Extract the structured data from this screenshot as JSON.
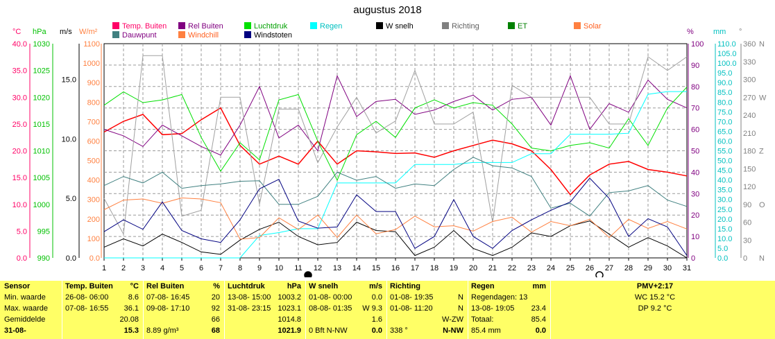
{
  "title": "augustus 2018",
  "legend": [
    {
      "label": "Temp. Buiten",
      "color": "#ff0066"
    },
    {
      "label": "Rel Buiten",
      "color": "#800080"
    },
    {
      "label": "Luchtdruk",
      "color": "#00e000"
    },
    {
      "label": "Regen",
      "color": "#00ffff"
    },
    {
      "label": "W snelh",
      "color": "#000000"
    },
    {
      "label": "Richting",
      "color": "#808080"
    },
    {
      "label": "ET",
      "color": "#008000"
    },
    {
      "label": "Solar",
      "color": "#ff8040"
    },
    {
      "label": "Dauwpunt",
      "color": "#408080"
    },
    {
      "label": "Windchill",
      "color": "#ff8040"
    },
    {
      "label": "Windstoten",
      "color": "#000080"
    }
  ],
  "units": {
    "temp": "°C",
    "press": "hPa",
    "wind": "m/s",
    "solar": "W/m²",
    "pct": "%",
    "rain": "mm",
    "dir": "°"
  },
  "chart_data": {
    "type": "line",
    "title": "augustus 2018",
    "x": [
      1,
      2,
      3,
      4,
      5,
      6,
      7,
      8,
      9,
      10,
      11,
      12,
      13,
      14,
      15,
      16,
      17,
      18,
      19,
      20,
      21,
      22,
      23,
      24,
      25,
      26,
      27,
      28,
      29,
      30,
      31
    ],
    "axes": {
      "temp": {
        "min": 0,
        "max": 40,
        "ticks": [
          "0.0",
          "5.0",
          "10.0",
          "15.0",
          "20.0",
          "25.0",
          "30.0",
          "35.0",
          "40.0"
        ]
      },
      "press": {
        "min": 990,
        "max": 1030,
        "ticks": [
          "990",
          "995",
          "1000",
          "1005",
          "1010",
          "1015",
          "1020",
          "1025",
          "1030"
        ]
      },
      "wind": {
        "min": 0,
        "max": 18,
        "ticks": [
          "0.0",
          "5.0",
          "10.0",
          "15.0"
        ]
      },
      "solar": {
        "min": 0,
        "max": 1100,
        "ticks": [
          "0.0",
          "100",
          "200",
          "300",
          "400",
          "500",
          "600",
          "700",
          "800",
          "900",
          "1000",
          "1100"
        ]
      },
      "pct": {
        "min": 0,
        "max": 100,
        "ticks": [
          "0",
          "10",
          "20",
          "30",
          "40",
          "50",
          "60",
          "70",
          "80",
          "90",
          "100"
        ]
      },
      "rain": {
        "min": 0,
        "max": 110,
        "ticks": [
          "0.0",
          "5.0",
          "10.0",
          "15.0",
          "20.0",
          "25.0",
          "30.0",
          "35.0",
          "40.0",
          "45.0",
          "50.0",
          "55.0",
          "60.0",
          "65.0",
          "70.0",
          "75.0",
          "80.0",
          "85.0",
          "90.0",
          "95.0",
          "100.0",
          "105.0",
          "110.0"
        ]
      },
      "dir": {
        "min": 0,
        "max": 360,
        "ticks": [
          "0",
          "30",
          "60",
          "90",
          "120",
          "150",
          "180",
          "210",
          "240",
          "270",
          "300",
          "330",
          "360"
        ]
      },
      "dir_labels": [
        "N",
        "",
        "",
        "O",
        "",
        "",
        "Z",
        "",
        "",
        "W",
        "",
        "",
        "N"
      ]
    },
    "series": [
      {
        "name": "Temp. Buiten",
        "axis": "temp",
        "color": "#ff0000",
        "width": 1.5,
        "values": [
          23.5,
          25.5,
          26.8,
          23.0,
          23.2,
          25.8,
          28.0,
          21.0,
          17.5,
          19.0,
          17.5,
          21.8,
          17.5,
          20.0,
          19.8,
          19.5,
          19.6,
          18.8,
          20.0,
          21.0,
          22.0,
          21.3,
          20.0,
          16.5,
          11.8,
          15.5,
          17.5,
          18.0,
          16.5,
          16.0,
          15.3
        ]
      },
      {
        "name": "Rel Buiten",
        "axis": "pct",
        "color": "#800080",
        "values": [
          60,
          57,
          52,
          62,
          57,
          52,
          48,
          62,
          80,
          56,
          62,
          50,
          85,
          66,
          73,
          74,
          67,
          69,
          73,
          76,
          69,
          74,
          75,
          62,
          85,
          60,
          72,
          68,
          83,
          74,
          70
        ]
      },
      {
        "name": "Luchtdruk",
        "axis": "press",
        "color": "#00e000",
        "values": [
          1018.5,
          1021.0,
          1019.0,
          1019.5,
          1020.5,
          1012.5,
          1006.2,
          1011.5,
          1008.3,
          1019.5,
          1020.5,
          1011.8,
          1004.5,
          1013.0,
          1015.5,
          1012.5,
          1018.0,
          1019.5,
          1018.0,
          1019.0,
          1018.5,
          1015.0,
          1010.5,
          1010.0,
          1011.0,
          1011.5,
          1010.5,
          1016.0,
          1011.0,
          1018.0,
          1021.9
        ]
      },
      {
        "name": "Regen",
        "axis": "rain",
        "color": "#00ffff",
        "values": [
          0,
          0,
          0,
          0,
          0,
          0,
          0,
          0,
          11.5,
          13.0,
          15.0,
          15.0,
          38.5,
          38.5,
          38.5,
          38.5,
          48.0,
          48.0,
          48.0,
          49.0,
          49.0,
          49.0,
          53.5,
          53.5,
          63.5,
          63.5,
          63.5,
          64.0,
          84.0,
          85.4,
          85.4
        ]
      },
      {
        "name": "W snelh",
        "axis": "wind",
        "color": "#000000",
        "values": [
          0.9,
          1.6,
          1.0,
          2.0,
          1.3,
          0.5,
          0.3,
          1.5,
          2.4,
          3.0,
          1.8,
          1.1,
          1.3,
          3.0,
          2.3,
          2.2,
          0.2,
          0.9,
          2.3,
          0.8,
          0.2,
          0.9,
          2.1,
          1.8,
          2.7,
          3.1,
          2.0,
          0.9,
          1.7,
          1.0,
          0.0
        ]
      },
      {
        "name": "Richting",
        "axis": "dir",
        "color": "#a0a0a0",
        "values": [
          100,
          40,
          340,
          340,
          70,
          80,
          270,
          270,
          90,
          250,
          250,
          160,
          220,
          270,
          210,
          230,
          315,
          225,
          225,
          245,
          60,
          290,
          270,
          270,
          270,
          270,
          225,
          225,
          338,
          315,
          338
        ]
      },
      {
        "name": "Dauwpunt",
        "axis": "temp",
        "color": "#408080",
        "values": [
          13.5,
          15.2,
          14.0,
          16.0,
          13.0,
          13.5,
          13.8,
          14.3,
          14.4,
          10.0,
          10.0,
          11.5,
          16.0,
          14.5,
          15.2,
          13.0,
          13.8,
          13.5,
          16.5,
          18.8,
          17.2,
          16.8,
          15.2,
          9.3,
          10.2,
          7.8,
          12.2,
          12.5,
          13.5,
          10.8,
          9.6
        ]
      },
      {
        "name": "Windchill",
        "axis": "temp",
        "color": "#ff8040",
        "values": [
          9.0,
          10.8,
          11.0,
          10.2,
          11.2,
          11.0,
          10.3,
          3.5,
          3.8,
          7.5,
          5.3,
          8.0,
          3.8,
          8.0,
          4.5,
          5.3,
          7.8,
          5.8,
          6.0,
          5.0,
          6.8,
          7.6,
          4.8,
          6.8,
          6.0,
          7.2,
          3.8,
          7.2,
          5.5,
          6.8,
          5.4
        ]
      },
      {
        "name": "Windstoten",
        "axis": "wind",
        "color": "#000080",
        "values": [
          2.2,
          3.2,
          2.4,
          4.7,
          2.3,
          1.6,
          1.3,
          3.2,
          5.8,
          6.6,
          3.1,
          2.5,
          2.6,
          5.3,
          3.9,
          3.9,
          0.8,
          1.8,
          4.9,
          1.8,
          0.8,
          2.3,
          3.2,
          4.0,
          4.7,
          6.7,
          5.0,
          1.8,
          3.3,
          2.6,
          0.2
        ]
      }
    ],
    "markers": [
      {
        "x": 11.5,
        "symbol": "filled-circle"
      },
      {
        "x": 26.5,
        "symbol": "open-circle"
      }
    ],
    "grid": true
  },
  "table": {
    "rows": [
      "Sensor",
      "Min. waarde",
      "Max. waarde",
      "Gemiddelde",
      "31-08-"
    ],
    "columns": [
      {
        "head": "Temp. Buiten",
        "unit": "°C",
        "cells": [
          [
            "26-08- 06:00",
            "8.6"
          ],
          [
            "07-08- 16:55",
            "36.1"
          ],
          [
            "",
            "20.08"
          ],
          [
            "",
            "15.3"
          ]
        ]
      },
      {
        "head": "Rel Buiten",
        "unit": "%",
        "cells": [
          [
            "07-08- 16:45",
            "20"
          ],
          [
            "09-08- 17:10",
            "92"
          ],
          [
            "",
            "66"
          ],
          [
            "8.89 g/m³",
            "68"
          ]
        ]
      },
      {
        "head": "Luchtdruk",
        "unit": "hPa",
        "cells": [
          [
            "13-08- 15:00",
            "1003.2"
          ],
          [
            "31-08- 23:15",
            "1023.1"
          ],
          [
            "",
            "1014.8"
          ],
          [
            "",
            "1021.9"
          ]
        ]
      },
      {
        "head": "W snelh",
        "unit": "m/s",
        "cells": [
          [
            "01-08- 00:00",
            "0.0"
          ],
          [
            "08-08- 01:35",
            "W 9.3"
          ],
          [
            "",
            "1.6"
          ],
          [
            "0 Bft N-NW",
            "0.0"
          ]
        ]
      },
      {
        "head": "Richting",
        "unit": "",
        "cells": [
          [
            "01-08- 19:35",
            "N"
          ],
          [
            "01-08- 11:20",
            "N"
          ],
          [
            "",
            "W-ZW"
          ],
          [
            "338 °",
            "N-NW"
          ]
        ]
      },
      {
        "head": "Regen",
        "unit": "mm",
        "cells": [
          [
            "Regendagen: 13",
            ""
          ],
          [
            "13-08- 19:05",
            "23.4"
          ],
          [
            "Totaal:",
            "85.4"
          ],
          [
            "85.4 mm",
            "0.0"
          ]
        ]
      }
    ],
    "pmv": {
      "head": "PMV+2:17",
      "lines": [
        "WC 15.2 °C",
        "DP 9.2 °C"
      ]
    }
  }
}
